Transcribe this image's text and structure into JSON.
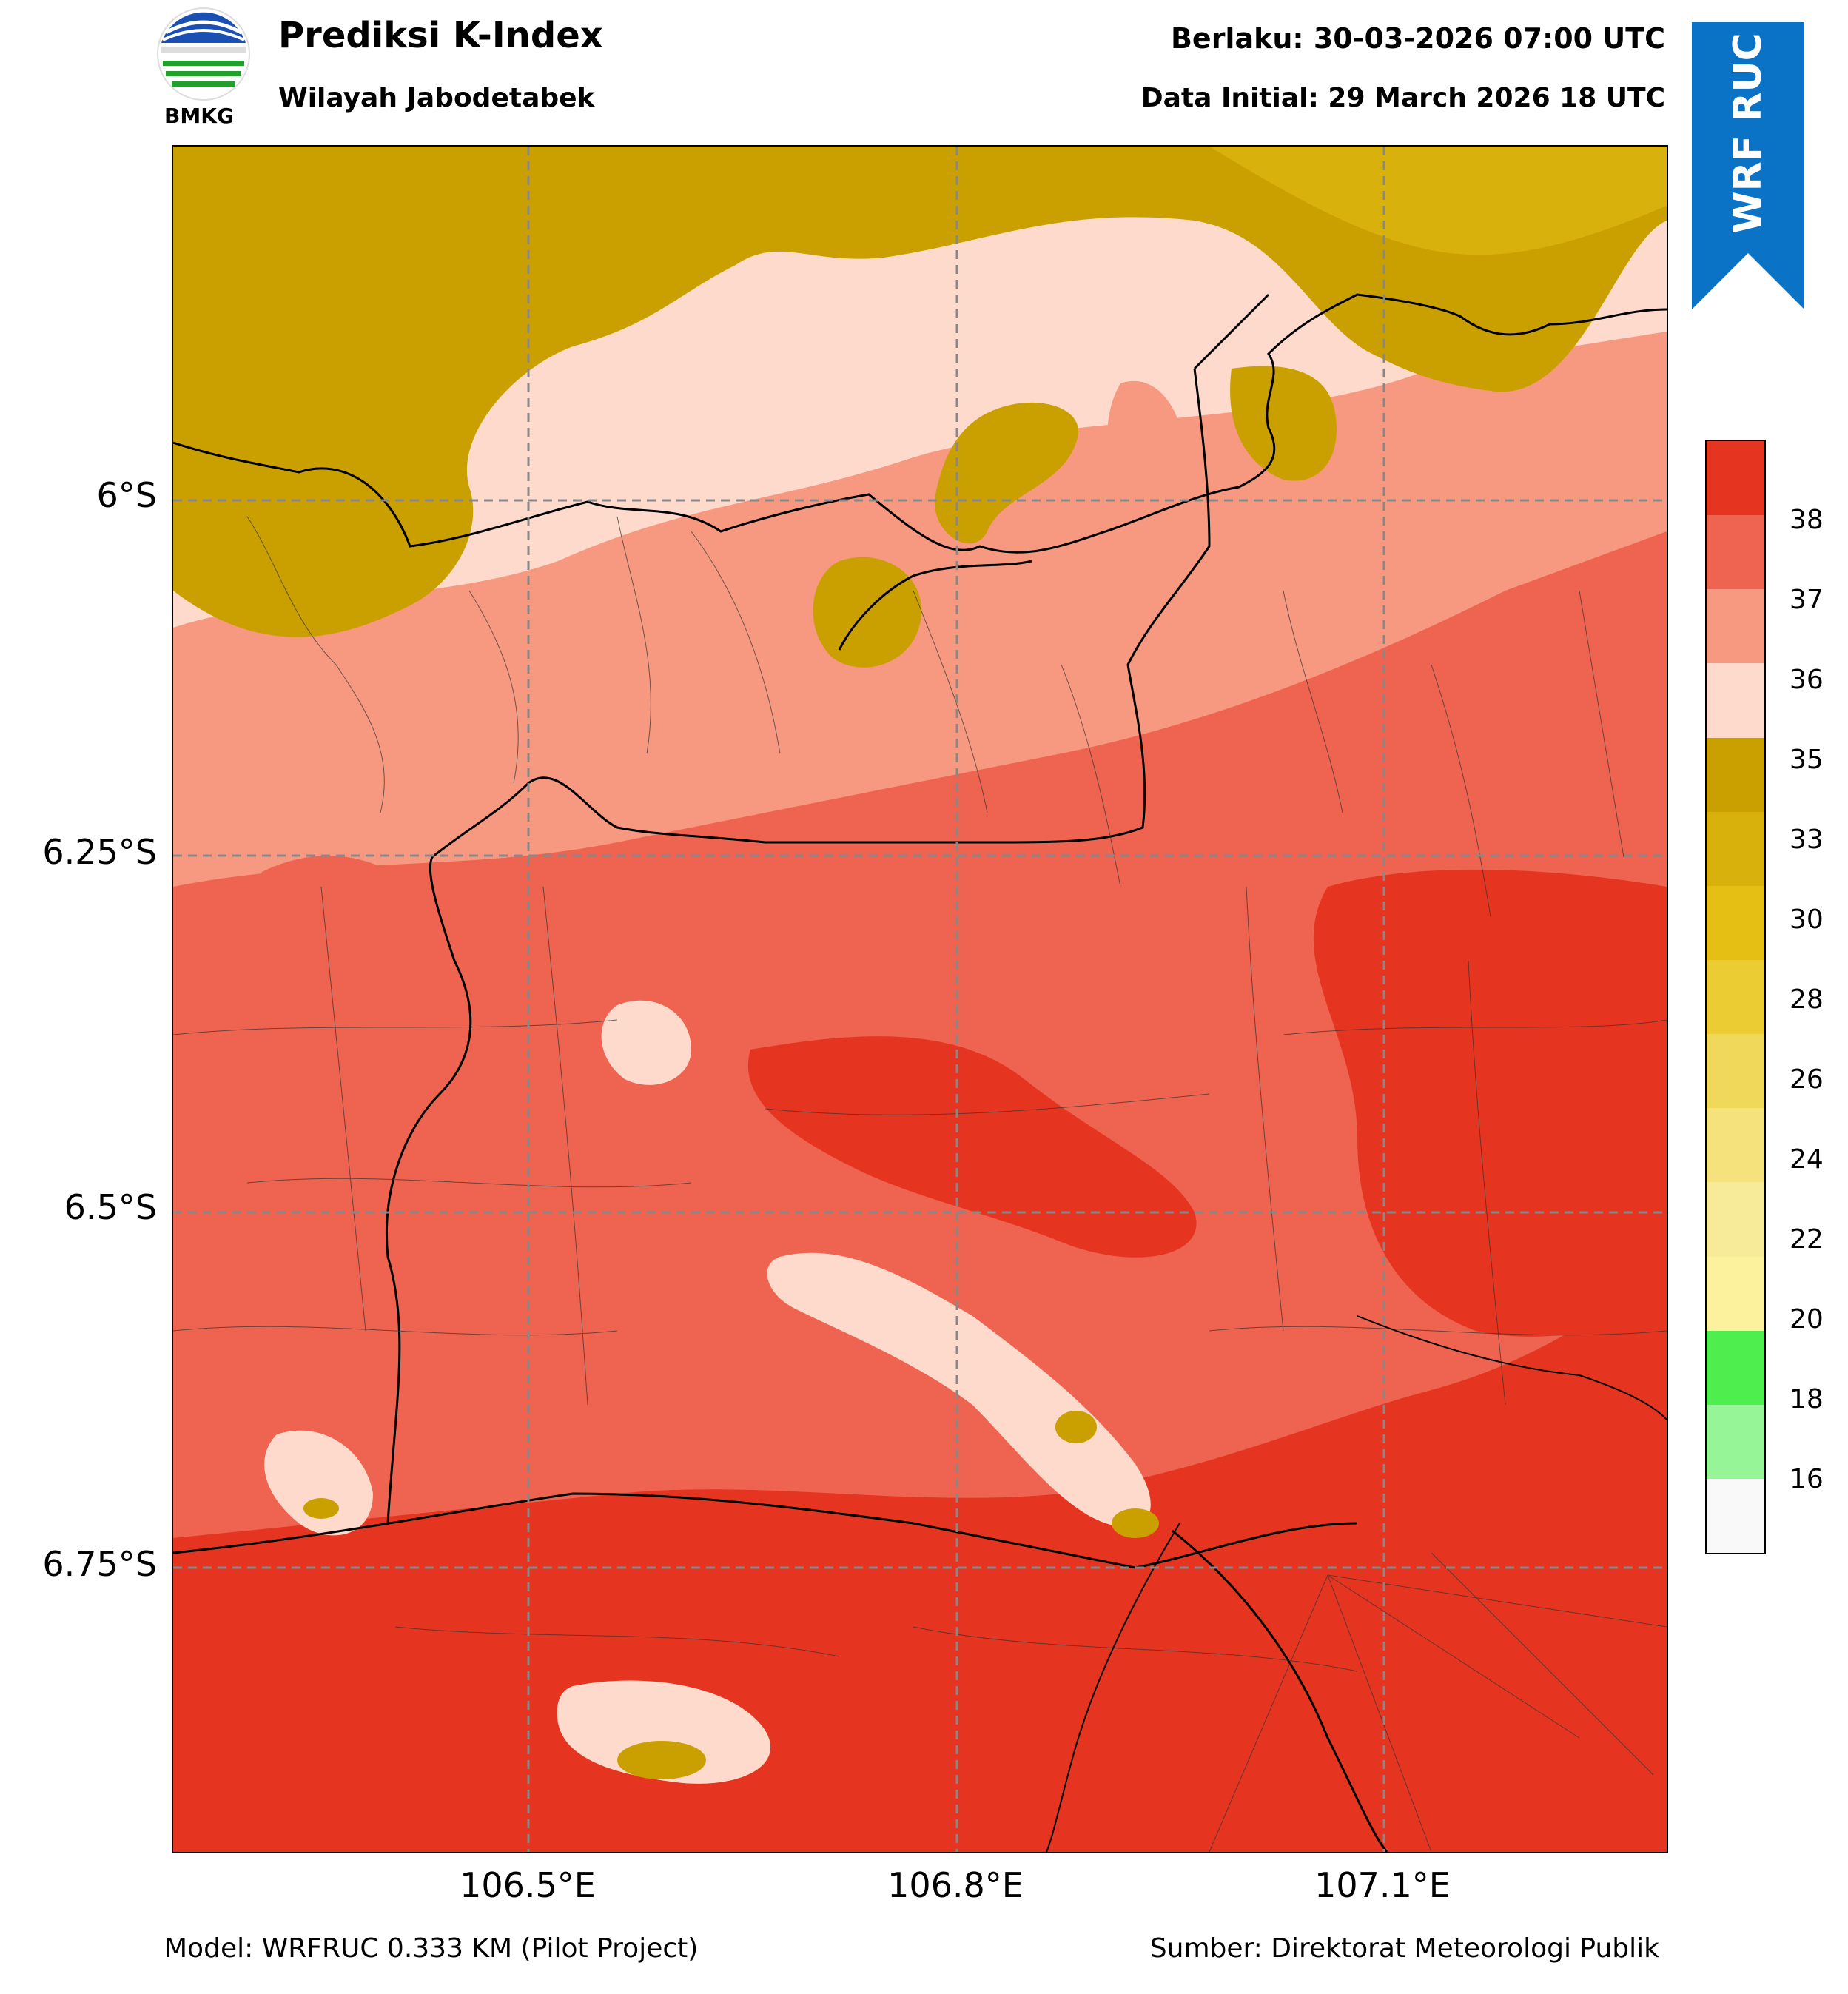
{
  "header": {
    "title": "Prediksi K-Index",
    "subtitle": "Wilayah Jabodetabek",
    "valid_time": "Berlaku: 30-03-2026 07:00 UTC",
    "initial_time": "Data Initial: 29 March 2026 18 UTC",
    "logo_text": "BMKG",
    "ribbon_label": "WRF RUC"
  },
  "footer": {
    "model": "Model: WRFRUC 0.333 KM (Pilot Project)",
    "source": "Sumber: Direktorat Meteorologi Publik"
  },
  "map": {
    "lat_labels": [
      "6°S",
      "6.25°S",
      "6.5°S",
      "6.75°S"
    ],
    "lon_labels": [
      "106.5°E",
      "106.8°E",
      "107.1°E"
    ]
  },
  "colorbar": {
    "ticks": [
      "38",
      "37",
      "36",
      "35",
      "33",
      "30",
      "28",
      "26",
      "24",
      "22",
      "20",
      "18",
      "16"
    ],
    "colors": [
      "#e53520",
      "#ee6450",
      "#f79880",
      "#fddacb",
      "#c9a000",
      "#d9b10d",
      "#e6bf14",
      "#ebcc33",
      "#f0d85a",
      "#f5e27c",
      "#f7eb9a",
      "#fcf29e",
      "#4fee4f",
      "#96f596",
      "#f9f9f9"
    ]
  },
  "palette": {
    "very_high": "#e53520",
    "high": "#ee6450",
    "mid_high": "#f79880",
    "mid": "#fddacb",
    "low": "#c9a000",
    "ribbon": "#0a73c6"
  }
}
